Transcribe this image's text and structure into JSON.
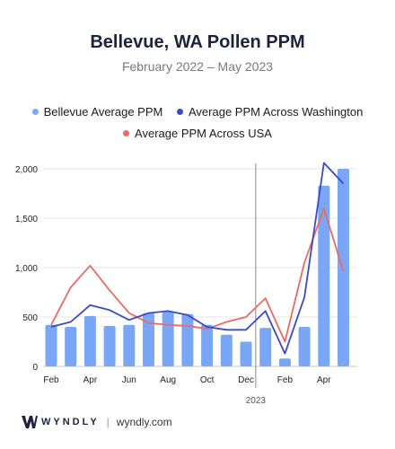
{
  "title": "Bellevue, WA Pollen PPM",
  "subtitle": "February 2022 – May 2023",
  "footer": {
    "brand": "WYNDLY",
    "separator": "|",
    "url": "wyndly.com"
  },
  "colors": {
    "bars": "#7aa7f5",
    "washington": "#3b49c6",
    "usa": "#ea6b64",
    "title": "#1b2340"
  },
  "chart_data": {
    "type": "bar",
    "categories": [
      "Feb 2022",
      "Mar 2022",
      "Apr 2022",
      "May 2022",
      "Jun 2022",
      "Jul 2022",
      "Aug 2022",
      "Sep 2022",
      "Oct 2022",
      "Nov 2022",
      "Dec 2022",
      "Jan 2023",
      "Feb 2023",
      "Mar 2023",
      "Apr 2023",
      "May 2023"
    ],
    "tick_labels": [
      "Feb",
      "Apr",
      "Jun",
      "Aug",
      "Oct",
      "Dec",
      "Feb",
      "Apr"
    ],
    "year_label": "2023",
    "ylim": [
      0,
      2100
    ],
    "yticks": [
      0,
      500,
      1000,
      1500,
      2000
    ],
    "ytick_labels": [
      "0",
      "500",
      "1,000",
      "1,500",
      "2,000"
    ],
    "series": [
      {
        "name": "Bellevue Average PPM",
        "type": "bar",
        "values": [
          420,
          400,
          510,
          410,
          420,
          540,
          550,
          530,
          420,
          320,
          250,
          390,
          80,
          400,
          1830,
          2000
        ]
      },
      {
        "name": "Average PPM Across Washington",
        "type": "line",
        "values": [
          400,
          450,
          620,
          570,
          470,
          540,
          560,
          520,
          400,
          370,
          370,
          560,
          130,
          700,
          2060,
          1850
        ]
      },
      {
        "name": "Average PPM Across USA",
        "type": "line",
        "values": [
          420,
          800,
          1020,
          770,
          540,
          440,
          420,
          410,
          380,
          450,
          500,
          690,
          250,
          1050,
          1600,
          960
        ]
      }
    ],
    "legend": {
      "position": "top"
    },
    "grid": true
  }
}
